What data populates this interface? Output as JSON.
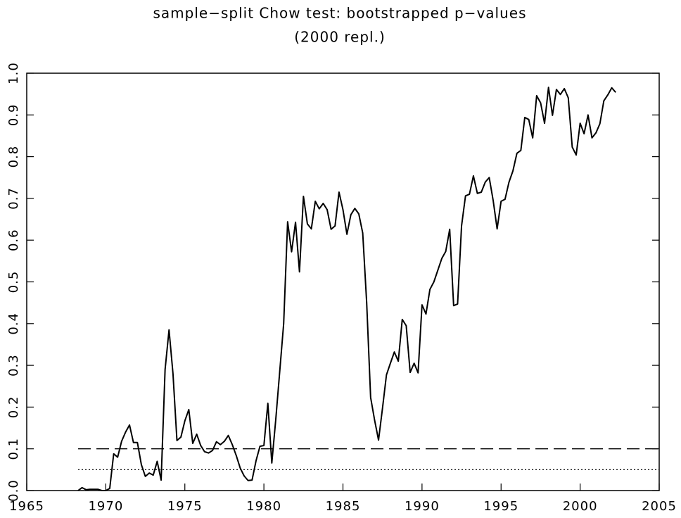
{
  "chart_data": {
    "type": "line",
    "title": "sample−split Chow test: bootstrapped p−values",
    "subtitle": "(2000 repl.)",
    "xlim": [
      1965,
      2005
    ],
    "xticks": [
      1965,
      1970,
      1975,
      1980,
      1985,
      1990,
      1995,
      2000,
      2005
    ],
    "ylim": [
      0,
      1
    ],
    "yticks": [
      {
        "value": 0,
        "label": "0.0"
      },
      0.1,
      0.2,
      0.3,
      0.4,
      0.5,
      0.6,
      0.7,
      0.8,
      0.9,
      {
        "value": 1,
        "label": "1.0"
      }
    ],
    "reference_lines": [
      {
        "value": 0.1,
        "style": "dashed"
      },
      {
        "value": 0.05,
        "style": "dotted"
      }
    ],
    "x": [
      1968.25,
      1968.5,
      1968.75,
      1969,
      1969.25,
      1969.5,
      1969.75,
      1970,
      1970.25,
      1970.5,
      1970.75,
      1971,
      1971.25,
      1971.5,
      1971.75,
      1972,
      1972.25,
      1972.5,
      1972.75,
      1973,
      1973.25,
      1973.5,
      1973.75,
      1974,
      1974.25,
      1974.5,
      1974.75,
      1975,
      1975.25,
      1975.5,
      1975.75,
      1976,
      1976.25,
      1976.5,
      1976.75,
      1977,
      1977.25,
      1977.5,
      1977.75,
      1978,
      1978.25,
      1978.5,
      1978.75,
      1979,
      1979.25,
      1979.5,
      1979.75,
      1980,
      1980.25,
      1980.5,
      1980.75,
      1981,
      1981.25,
      1981.5,
      1981.75,
      1982,
      1982.25,
      1982.5,
      1982.75,
      1983,
      1983.25,
      1983.5,
      1983.75,
      1984,
      1984.25,
      1984.5,
      1984.75,
      1985,
      1985.25,
      1985.5,
      1985.75,
      1986,
      1986.25,
      1986.5,
      1986.75,
      1987,
      1987.25,
      1987.5,
      1987.75,
      1988,
      1988.25,
      1988.5,
      1988.75,
      1989,
      1989.25,
      1989.5,
      1989.75,
      1990,
      1990.25,
      1990.5,
      1990.75,
      1991,
      1991.25,
      1991.5,
      1991.75,
      1992,
      1992.25,
      1992.5,
      1992.75,
      1993,
      1993.25,
      1993.5,
      1993.75,
      1994,
      1994.25,
      1994.5,
      1994.75,
      1995,
      1995.25,
      1995.5,
      1995.75,
      1996,
      1996.25,
      1996.5,
      1996.75,
      1997,
      1997.25,
      1997.5,
      1997.75,
      1998,
      1998.25,
      1998.5,
      1998.75,
      1999,
      1999.25,
      1999.5,
      1999.75,
      2000,
      2000.25,
      2000.5,
      2000.75,
      2001,
      2001.25,
      2001.5,
      2001.75,
      2002,
      2002.25
    ],
    "series": [
      {
        "color": "#000000",
        "values": [
          0.0,
          0.007,
          0.002,
          0.003,
          0.003,
          0.003,
          0.0,
          0.0,
          0.005,
          0.088,
          0.08,
          0.118,
          0.14,
          0.157,
          0.115,
          0.115,
          0.062,
          0.034,
          0.042,
          0.037,
          0.07,
          0.025,
          0.29,
          0.385,
          0.28,
          0.12,
          0.128,
          0.167,
          0.194,
          0.113,
          0.135,
          0.108,
          0.093,
          0.09,
          0.096,
          0.117,
          0.11,
          0.118,
          0.132,
          0.11,
          0.084,
          0.054,
          0.035,
          0.024,
          0.025,
          0.071,
          0.106,
          0.108,
          0.209,
          0.066,
          0.17,
          0.285,
          0.4,
          0.644,
          0.572,
          0.643,
          0.524,
          0.705,
          0.639,
          0.627,
          0.693,
          0.675,
          0.688,
          0.673,
          0.626,
          0.634,
          0.715,
          0.673,
          0.614,
          0.661,
          0.676,
          0.663,
          0.617,
          0.45,
          0.223,
          0.169,
          0.121,
          0.197,
          0.277,
          0.305,
          0.332,
          0.31,
          0.41,
          0.395,
          0.283,
          0.305,
          0.282,
          0.445,
          0.423,
          0.482,
          0.5,
          0.528,
          0.556,
          0.573,
          0.626,
          0.443,
          0.447,
          0.634,
          0.706,
          0.71,
          0.754,
          0.712,
          0.715,
          0.739,
          0.75,
          0.695,
          0.627,
          0.693,
          0.698,
          0.739,
          0.766,
          0.808,
          0.815,
          0.894,
          0.889,
          0.845,
          0.946,
          0.929,
          0.88,
          0.966,
          0.899,
          0.961,
          0.949,
          0.963,
          0.941,
          0.823,
          0.804,
          0.88,
          0.855,
          0.9,
          0.845,
          0.857,
          0.879,
          0.934,
          0.948,
          0.965,
          0.954
        ]
      }
    ]
  }
}
